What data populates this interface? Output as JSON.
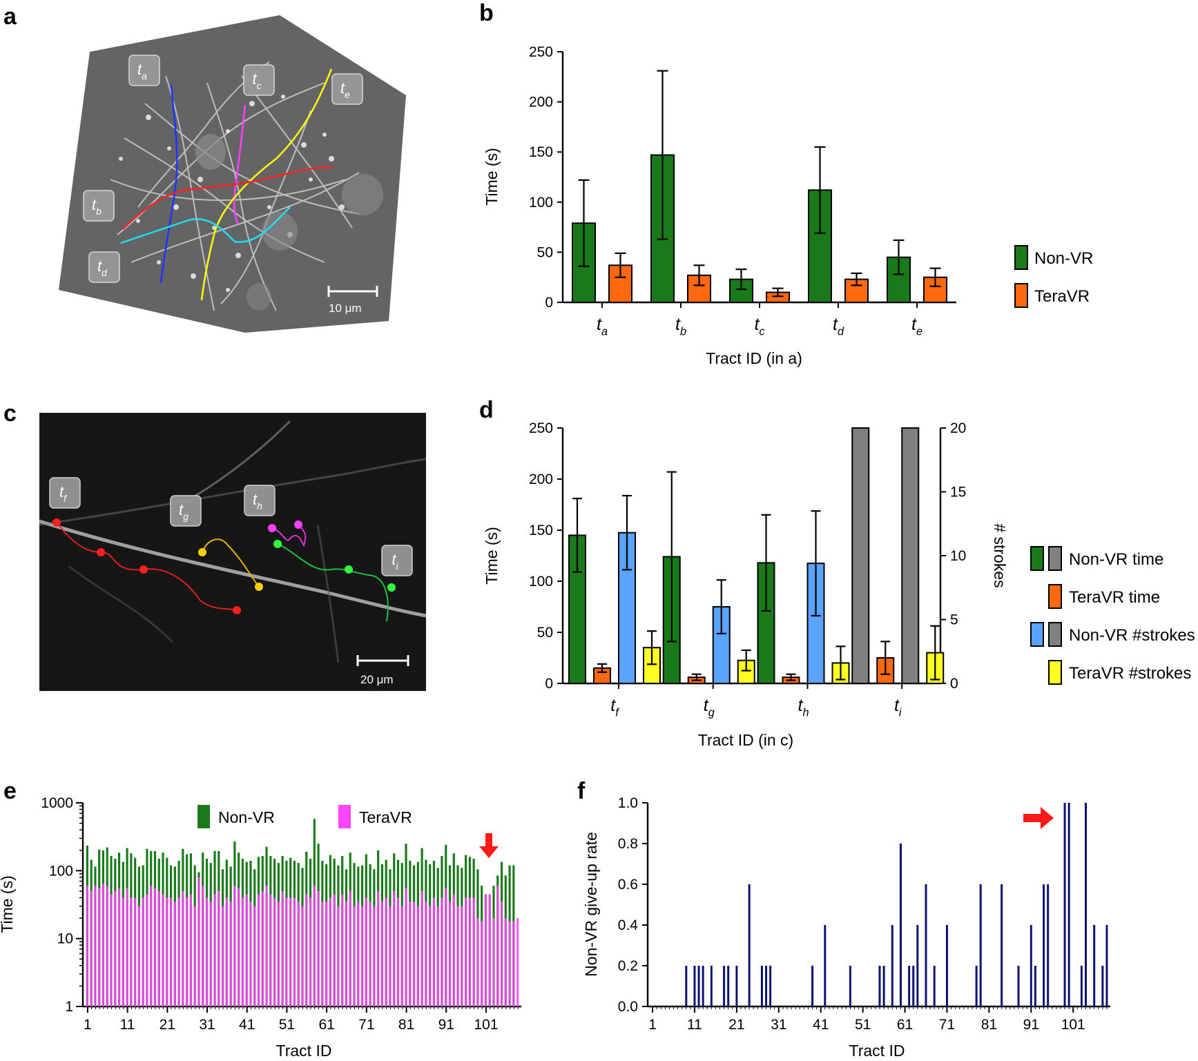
{
  "colors": {
    "green": "#1a7a1a",
    "orange": "#ff6a10",
    "blue": "#5aa4ff",
    "gray": "#808080",
    "yellow": "#ffff22",
    "magenta": "#ff44ff",
    "navy": "#0b1372",
    "red": "#ff1a1a"
  },
  "panels": {
    "a": {
      "letter": "a",
      "scale_label": "10 μm",
      "tract_labels": [
        {
          "base": "t",
          "sub": "a"
        },
        {
          "base": "t",
          "sub": "b"
        },
        {
          "base": "t",
          "sub": "c"
        },
        {
          "base": "t",
          "sub": "d"
        },
        {
          "base": "t",
          "sub": "e"
        }
      ]
    },
    "b": {
      "letter": "b"
    },
    "c": {
      "letter": "c",
      "scale_label": "20 μm",
      "tract_labels": [
        {
          "base": "t",
          "sub": "f"
        },
        {
          "base": "t",
          "sub": "g"
        },
        {
          "base": "t",
          "sub": "h"
        },
        {
          "base": "t",
          "sub": "i"
        }
      ]
    },
    "d": {
      "letter": "d"
    },
    "e": {
      "letter": "e"
    },
    "f": {
      "letter": "f"
    }
  },
  "chart_data": [
    {
      "id": "b",
      "type": "bar",
      "categories": [
        {
          "base": "t",
          "sub": "a"
        },
        {
          "base": "t",
          "sub": "b"
        },
        {
          "base": "t",
          "sub": "c"
        },
        {
          "base": "t",
          "sub": "d"
        },
        {
          "base": "t",
          "sub": "e"
        }
      ],
      "series": [
        {
          "name": "Non-VR",
          "color": "#1a7a1a",
          "values": [
            79,
            147,
            23,
            112,
            45
          ],
          "errors": [
            43,
            84,
            10,
            43,
            17
          ]
        },
        {
          "name": "TeraVR",
          "color": "#ff6a10",
          "values": [
            37,
            27,
            10,
            23,
            25
          ],
          "errors": [
            12,
            10,
            4,
            6,
            9
          ]
        }
      ],
      "xlabel": "Tract ID (in a)",
      "ylabel": "Time (s)",
      "ylim": [
        0,
        250
      ],
      "yticks": [
        0,
        50,
        100,
        150,
        200,
        250
      ],
      "legend_position": "right"
    },
    {
      "id": "d",
      "type": "bar",
      "categories": [
        {
          "base": "t",
          "sub": "f"
        },
        {
          "base": "t",
          "sub": "g"
        },
        {
          "base": "t",
          "sub": "h"
        },
        {
          "base": "t",
          "sub": "i"
        }
      ],
      "series": [
        {
          "name": "Non-VR time",
          "axis": "left",
          "colors": [
            "#1a7a1a",
            "#1a7a1a",
            "#1a7a1a",
            "#808080"
          ],
          "values": [
            145,
            124,
            118,
            250
          ],
          "errors": [
            36,
            83,
            47,
            0
          ]
        },
        {
          "name": "TeraVR time",
          "axis": "left",
          "color": "#ff6a10",
          "values": [
            15,
            6,
            6,
            25
          ],
          "errors": [
            4,
            3,
            3,
            16
          ]
        },
        {
          "name": "Non-VR #strokes",
          "axis": "right",
          "colors": [
            "#5aa4ff",
            "#5aa4ff",
            "#5aa4ff",
            "#808080"
          ],
          "values": [
            11.8,
            6.0,
            9.4,
            20
          ],
          "errors": [
            2.9,
            2.1,
            4.1,
            0
          ]
        },
        {
          "name": "TeraVR #strokes",
          "axis": "right",
          "color": "#ffff22",
          "values": [
            2.8,
            1.8,
            1.6,
            2.4
          ],
          "errors": [
            1.3,
            0.8,
            1.3,
            2.1
          ]
        }
      ],
      "legend": [
        {
          "label": "Non-VR time",
          "swatches": [
            "#1a7a1a",
            "#808080"
          ]
        },
        {
          "label": "TeraVR time",
          "swatches": [
            "#ff6a10"
          ]
        },
        {
          "label": "Non-VR #strokes",
          "swatches": [
            "#5aa4ff",
            "#808080"
          ]
        },
        {
          "label": "TeraVR #strokes",
          "swatches": [
            "#ffff22"
          ]
        }
      ],
      "xlabel": "Tract ID (in c)",
      "ylabel": "Time (s)",
      "ylabel_right": "# strokes",
      "ylim": [
        0,
        250
      ],
      "ylim_right": [
        0,
        20
      ],
      "yticks": [
        0,
        50,
        100,
        150,
        200,
        250
      ],
      "yticks_right": [
        0,
        5,
        10,
        15,
        20
      ],
      "legend_position": "right"
    },
    {
      "id": "e",
      "type": "bar",
      "scale": "log",
      "n": 109,
      "series": [
        {
          "name": "Non-VR",
          "color": "#1a7a1a",
          "values": [
            235,
            145,
            115,
            205,
            200,
            220,
            165,
            150,
            185,
            135,
            215,
            180,
            155,
            115,
            120,
            210,
            195,
            195,
            150,
            185,
            155,
            120,
            115,
            140,
            210,
            175,
            180,
            120,
            95,
            185,
            150,
            130,
            195,
            195,
            105,
            145,
            115,
            270,
            185,
            150,
            135,
            140,
            105,
            160,
            165,
            225,
            165,
            150,
            130,
            165,
            140,
            155,
            140,
            130,
            110,
            190,
            150,
            580,
            250,
            140,
            125,
            170,
            150,
            120,
            165,
            105,
            185,
            130,
            115,
            120,
            175,
            125,
            105,
            200,
            125,
            145,
            105,
            180,
            145,
            130,
            250,
            140,
            120,
            135,
            215,
            145,
            125,
            140,
            110,
            165,
            240,
            120,
            180,
            120,
            110,
            170,
            160,
            150,
            105,
            60,
            45,
            45,
            60,
            85,
            135,
            85,
            120,
            120,
            0
          ],
          "note": ""
        },
        {
          "name": "TeraVR",
          "color": "#ff44ff",
          "values": [
            60,
            50,
            60,
            55,
            65,
            60,
            45,
            50,
            55,
            40,
            55,
            40,
            40,
            30,
            40,
            45,
            60,
            55,
            50,
            45,
            40,
            40,
            35,
            40,
            50,
            40,
            45,
            30,
            80,
            60,
            40,
            35,
            45,
            50,
            30,
            40,
            35,
            60,
            55,
            40,
            45,
            35,
            30,
            45,
            50,
            60,
            45,
            40,
            35,
            50,
            40,
            40,
            40,
            35,
            30,
            45,
            40,
            60,
            50,
            35,
            35,
            40,
            45,
            30,
            45,
            35,
            50,
            30,
            35,
            30,
            40,
            35,
            30,
            50,
            35,
            40,
            30,
            50,
            40,
            30,
            55,
            35,
            35,
            30,
            50,
            35,
            30,
            40,
            30,
            40,
            55,
            35,
            45,
            30,
            30,
            40,
            40,
            40,
            20,
            18,
            45,
            45,
            20,
            60,
            35,
            20,
            18,
            18,
            20
          ]
        }
      ],
      "ylabel": "Time (s)",
      "xlabel": "Tract ID",
      "ylim": [
        1,
        1000
      ],
      "yticks": [
        1,
        10,
        100,
        1000
      ],
      "xticks": [
        1,
        11,
        21,
        31,
        41,
        51,
        61,
        71,
        81,
        91,
        101
      ],
      "legend_position": "top"
    },
    {
      "id": "f",
      "type": "bar",
      "n": 109,
      "series": [
        {
          "name": "",
          "color": "#0b1372",
          "values": {
            "9": 0.2,
            "11": 0.2,
            "12": 0.2,
            "13": 0.2,
            "15": 0.2,
            "18": 0.2,
            "19": 0.2,
            "21": 0.2,
            "24": 0.6,
            "27": 0.2,
            "28": 0.2,
            "29": 0.2,
            "39": 0.2,
            "42": 0.4,
            "48": 0.2,
            "55": 0.2,
            "56": 0.2,
            "58": 0.4,
            "60": 0.8,
            "62": 0.2,
            "63": 0.2,
            "64": 0.4,
            "66": 0.6,
            "68": 0.2,
            "71": 0.4,
            "78": 0.2,
            "79": 0.6,
            "84": 0.6,
            "88": 0.2,
            "91": 0.4,
            "92": 0.2,
            "94": 0.6,
            "95": 0.6,
            "99": 1.0,
            "100": 1.0,
            "103": 0.2,
            "104": 1.0,
            "106": 0.4,
            "108": 0.2,
            "109": 0.4
          }
        }
      ],
      "ylabel": "Non-VR give-up rate",
      "xlabel": "Tract ID",
      "ylim": [
        0,
        1.0
      ],
      "yticks": [
        "0.0",
        "0.2",
        "0.4",
        "0.6",
        "0.8",
        "1.0"
      ],
      "xticks": [
        1,
        11,
        21,
        31,
        41,
        51,
        61,
        71,
        81,
        91,
        101
      ]
    }
  ]
}
